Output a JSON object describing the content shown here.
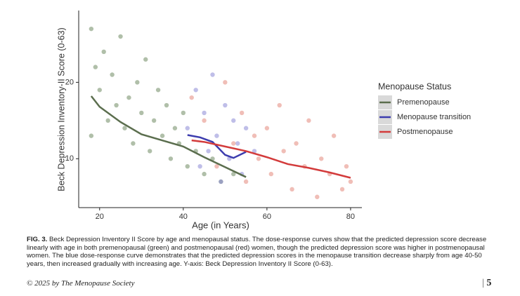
{
  "chart_data": {
    "type": "scatter",
    "ylabel": "Beck Depression Inventory-II Score (0-63)",
    "xlabel": "Age (in Years)",
    "legend_title": "Menopause Status",
    "legend": "right",
    "xlim": [
      15,
      82.7
    ],
    "xticks": [
      20,
      40,
      60,
      80
    ],
    "ylim": [
      3.6,
      29.4
    ],
    "yticks": [
      10,
      20
    ],
    "series": [
      {
        "name": "Premenopause",
        "color": "#5b6e4e",
        "point_color": "#6f8a62",
        "x": [
          18,
          18,
          19,
          20,
          21,
          22,
          23,
          24,
          25,
          26,
          27,
          28,
          29,
          30,
          31,
          32,
          33,
          34,
          35,
          36,
          37,
          38,
          39,
          40,
          41,
          43,
          45,
          47,
          49,
          52
        ],
        "values": [
          27,
          13,
          22,
          19,
          24,
          15,
          21,
          17,
          26,
          14,
          18,
          12,
          20,
          16,
          23,
          11,
          15,
          19,
          13,
          17,
          10,
          14,
          12,
          16,
          9,
          11,
          8,
          10,
          7,
          8
        ],
        "fit_x": [
          18,
          20,
          25,
          30,
          35,
          40,
          45,
          50,
          55
        ],
        "fit_values": [
          18.2,
          16.8,
          14.8,
          13.2,
          12.4,
          11.6,
          10.2,
          8.9,
          7.6
        ]
      },
      {
        "name": "Menopause transition",
        "color": "#3c3cae",
        "point_color": "#8a88d6",
        "x": [
          41,
          43,
          44,
          45,
          46,
          47,
          48,
          49,
          50,
          51,
          52,
          53,
          54,
          55,
          57
        ],
        "values": [
          14,
          19,
          9,
          16,
          11,
          21,
          13,
          7,
          17,
          10,
          15,
          12,
          8,
          14,
          11
        ],
        "fit_x": [
          41,
          44,
          47,
          50,
          52,
          55
        ],
        "fit_values": [
          13.1,
          12.8,
          12.2,
          10.5,
          10.1,
          10.9
        ]
      },
      {
        "name": "Postmenopause",
        "color": "#d33b3b",
        "point_color": "#e3887c",
        "x": [
          42,
          45,
          48,
          50,
          52,
          54,
          55,
          57,
          58,
          60,
          61,
          63,
          64,
          66,
          67,
          69,
          70,
          72,
          73,
          75,
          76,
          78,
          79,
          80
        ],
        "values": [
          18,
          15,
          9,
          20,
          12,
          16,
          7,
          13,
          10,
          14,
          8,
          17,
          11,
          6,
          12,
          9,
          15,
          5,
          10,
          8,
          13,
          6,
          9,
          7
        ],
        "fit_x": [
          42,
          45,
          50,
          55,
          60,
          65,
          70,
          75,
          80
        ],
        "fit_values": [
          12.4,
          12.2,
          11.6,
          11.0,
          10.2,
          9.3,
          8.8,
          8.2,
          7.5
        ]
      }
    ]
  },
  "caption": {
    "label": "FIG. 3.",
    "text": "Beck Depression Inventory II Score by age and menopausal status. The dose-response curves show that the predicted depression score decrease linearly with age in both premenopausal (green) and postmenopausal (red) women, though the predicted depression score was higher in postmenopausal women. The blue dose-response curve demonstrates that the predicted depression scores in the menopause transition decrease sharply from age 40-50 years, then increased gradually with increasing age. Y-axis: Beck Depression Inventory II Score (0-63)."
  },
  "footer": {
    "copyright": "© 2025 by The Menopause Society",
    "page": "5"
  }
}
